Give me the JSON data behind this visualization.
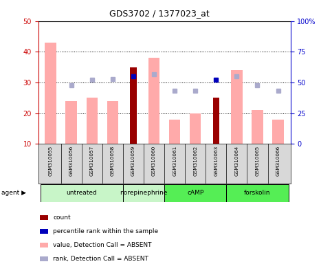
{
  "title": "GDS3702 / 1377023_at",
  "samples": [
    "GSM310055",
    "GSM310056",
    "GSM310057",
    "GSM310058",
    "GSM310059",
    "GSM310060",
    "GSM310061",
    "GSM310062",
    "GSM310063",
    "GSM310064",
    "GSM310065",
    "GSM310066"
  ],
  "bar_values_pink": [
    43,
    24,
    25,
    24,
    null,
    38,
    18,
    20,
    null,
    34,
    21,
    18
  ],
  "bar_values_red": [
    null,
    null,
    null,
    null,
    35,
    null,
    null,
    null,
    25,
    null,
    null,
    null
  ],
  "dot_blue_dark_pct": [
    null,
    null,
    null,
    null,
    55,
    null,
    null,
    null,
    52,
    null,
    null,
    null
  ],
  "dot_blue_light_pct": [
    null,
    48,
    52,
    53,
    null,
    57,
    43,
    43,
    null,
    55,
    48,
    43
  ],
  "ylim": [
    10,
    50
  ],
  "y2lim": [
    0,
    100
  ],
  "yticks": [
    10,
    20,
    30,
    40,
    50
  ],
  "y2ticks": [
    0,
    25,
    50,
    75,
    100
  ],
  "group_boundaries": [
    {
      "start": 0,
      "end": 3,
      "label": "untreated",
      "color": "#c8f5c8"
    },
    {
      "start": 4,
      "end": 5,
      "label": "norepinephrine",
      "color": "#c8f5c8"
    },
    {
      "start": 6,
      "end": 8,
      "label": "cAMP",
      "color": "#55ee55"
    },
    {
      "start": 9,
      "end": 11,
      "label": "forskolin",
      "color": "#55ee55"
    }
  ],
  "color_pink_bar": "#ffaaaa",
  "color_red_bar": "#990000",
  "color_blue_dark": "#0000bb",
  "color_blue_light": "#aaaacc",
  "axis_color_left": "#cc0000",
  "axis_color_right": "#0000cc",
  "bg_color": "#d8d8d8",
  "plot_bg": "#ffffff",
  "legend_items": [
    {
      "color": "#990000",
      "label": "count"
    },
    {
      "color": "#0000bb",
      "label": "percentile rank within the sample"
    },
    {
      "color": "#ffaaaa",
      "label": "value, Detection Call = ABSENT"
    },
    {
      "color": "#aaaacc",
      "label": "rank, Detection Call = ABSENT"
    }
  ]
}
